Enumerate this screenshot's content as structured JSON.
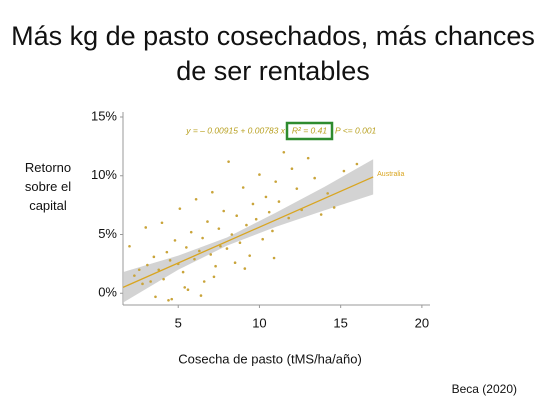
{
  "chart_data": {
    "type": "scatter",
    "title": "Más kg de pasto cosechados, más chances de ser rentables",
    "x_label": "Cosecha de pasto (tMS/ha/año)",
    "y_label": "Retorno sobre el capital",
    "source": "Beca (2020)",
    "annotations": {
      "equation": "y = – 0.00915 + 0.00783 x",
      "r2": "R² = 0.41",
      "p": "P <= 0.001"
    },
    "xlim": [
      1.6,
      20.5
    ],
    "ylim": [
      -1,
      15
    ],
    "xticks": [
      5,
      10,
      15,
      20
    ],
    "yticks": [
      {
        "value": 0,
        "label": "0%"
      },
      {
        "value": 5,
        "label": "5%"
      },
      {
        "value": 10,
        "label": "10%"
      },
      {
        "value": 15,
        "label": "15%"
      }
    ],
    "points": {
      "color": "#c9a43a",
      "x": [
        2.0,
        2.3,
        2.6,
        2.8,
        3.0,
        3.1,
        3.3,
        3.5,
        3.6,
        3.8,
        4.0,
        4.1,
        4.3,
        4.5,
        4.6,
        4.8,
        5.0,
        5.1,
        5.3,
        5.5,
        5.6,
        5.8,
        6.0,
        6.1,
        6.3,
        6.5,
        6.6,
        6.8,
        7.0,
        7.1,
        7.3,
        7.5,
        7.6,
        7.8,
        8.0,
        8.1,
        8.3,
        8.5,
        8.6,
        8.8,
        9.0,
        9.2,
        9.4,
        9.6,
        9.8,
        10.0,
        10.2,
        10.4,
        10.6,
        10.8,
        11.0,
        11.2,
        11.5,
        11.8,
        12.0,
        12.3,
        12.6,
        13.0,
        13.4,
        13.8,
        14.2,
        14.6,
        15.2,
        16.0,
        5.4,
        6.4,
        7.2,
        4.4,
        9.1,
        10.9
      ],
      "values": [
        4.0,
        1.5,
        2.0,
        0.8,
        5.6,
        2.4,
        1.0,
        3.1,
        -0.3,
        2.0,
        6.0,
        1.2,
        3.5,
        2.8,
        -0.5,
        4.5,
        2.5,
        7.2,
        1.8,
        3.9,
        0.3,
        5.2,
        2.9,
        8.0,
        3.6,
        4.7,
        1.0,
        6.1,
        3.3,
        8.6,
        2.3,
        5.5,
        4.0,
        7.0,
        3.8,
        11.2,
        5.0,
        2.6,
        6.6,
        4.3,
        9.0,
        5.8,
        3.2,
        7.6,
        6.3,
        10.1,
        4.6,
        8.2,
        6.9,
        5.3,
        9.5,
        7.8,
        12.0,
        6.4,
        10.6,
        8.9,
        7.1,
        11.5,
        9.8,
        6.7,
        8.5,
        7.3,
        10.4,
        11.0,
        0.5,
        -0.2,
        1.4,
        -0.6,
        2.1,
        3.0
      ]
    },
    "band": {
      "color": "#c8c8c8",
      "x": [
        1.6,
        5,
        8,
        11,
        14,
        17
      ],
      "lower": [
        -0.8,
        2.0,
        4.05,
        5.65,
        7.05,
        8.4
      ],
      "upper": [
        1.8,
        3.2,
        4.75,
        6.85,
        9.05,
        11.4
      ]
    },
    "fit": {
      "color": "#d9a520",
      "label": "Australia",
      "x": [
        1.6,
        17
      ],
      "values": [
        0.5,
        9.9
      ]
    }
  }
}
